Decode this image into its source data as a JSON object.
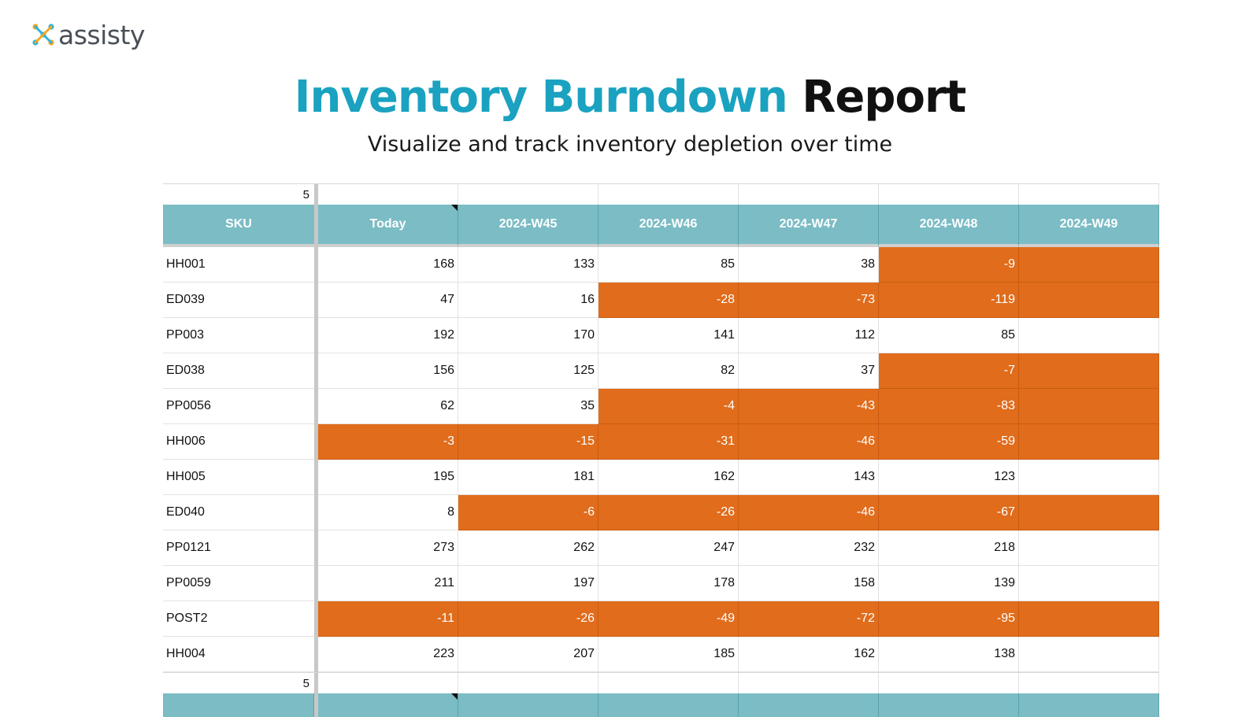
{
  "brand": {
    "name": "assisty",
    "logo_colors": [
      "#f5a623",
      "#2bb3e0",
      "#4a4f57"
    ]
  },
  "title": {
    "part1": "Inventory Burndown",
    "part2": "Report",
    "subtitle": "Visualize and track inventory depletion over time"
  },
  "colors": {
    "title_accent": "#1aa2c0",
    "header_bg": "#7bbcc5",
    "negative_bg": "#e06c1c"
  },
  "sheet": {
    "filter_value": "5",
    "columns": [
      "SKU",
      "Today",
      "2024-W45",
      "2024-W46",
      "2024-W47",
      "2024-W48",
      "2024-W49"
    ],
    "rows": [
      {
        "sku": "HH001",
        "values": [
          "168",
          "133",
          "85",
          "38",
          "-9",
          ""
        ]
      },
      {
        "sku": "ED039",
        "values": [
          "47",
          "16",
          "-28",
          "-73",
          "-119",
          ""
        ]
      },
      {
        "sku": "PP003",
        "values": [
          "192",
          "170",
          "141",
          "112",
          "85",
          ""
        ]
      },
      {
        "sku": "ED038",
        "values": [
          "156",
          "125",
          "82",
          "37",
          "-7",
          ""
        ]
      },
      {
        "sku": "PP0056",
        "values": [
          "62",
          "35",
          "-4",
          "-43",
          "-83",
          ""
        ]
      },
      {
        "sku": "HH006",
        "values": [
          "-3",
          "-15",
          "-31",
          "-46",
          "-59",
          ""
        ]
      },
      {
        "sku": "HH005",
        "values": [
          "195",
          "181",
          "162",
          "143",
          "123",
          ""
        ]
      },
      {
        "sku": "ED040",
        "values": [
          "8",
          "-6",
          "-26",
          "-46",
          "-67",
          ""
        ]
      },
      {
        "sku": "PP0121",
        "values": [
          "273",
          "262",
          "247",
          "232",
          "218",
          ""
        ]
      },
      {
        "sku": "PP0059",
        "values": [
          "211",
          "197",
          "178",
          "158",
          "139",
          ""
        ]
      },
      {
        "sku": "POST2",
        "values": [
          "-11",
          "-26",
          "-49",
          "-72",
          "-95",
          ""
        ]
      },
      {
        "sku": "HH004",
        "values": [
          "223",
          "207",
          "185",
          "162",
          "138",
          ""
        ]
      }
    ],
    "negative_flags": [
      [
        false,
        false,
        false,
        false,
        true,
        true
      ],
      [
        false,
        false,
        true,
        true,
        true,
        true
      ],
      [
        false,
        false,
        false,
        false,
        false,
        false
      ],
      [
        false,
        false,
        false,
        false,
        true,
        true
      ],
      [
        false,
        false,
        true,
        true,
        true,
        true
      ],
      [
        true,
        true,
        true,
        true,
        true,
        true
      ],
      [
        false,
        false,
        false,
        false,
        false,
        false
      ],
      [
        false,
        true,
        true,
        true,
        true,
        true
      ],
      [
        false,
        false,
        false,
        false,
        false,
        false
      ],
      [
        false,
        false,
        false,
        false,
        false,
        false
      ],
      [
        true,
        true,
        true,
        true,
        true,
        true
      ],
      [
        false,
        false,
        false,
        false,
        false,
        false
      ]
    ],
    "second_filter_value": "5"
  }
}
